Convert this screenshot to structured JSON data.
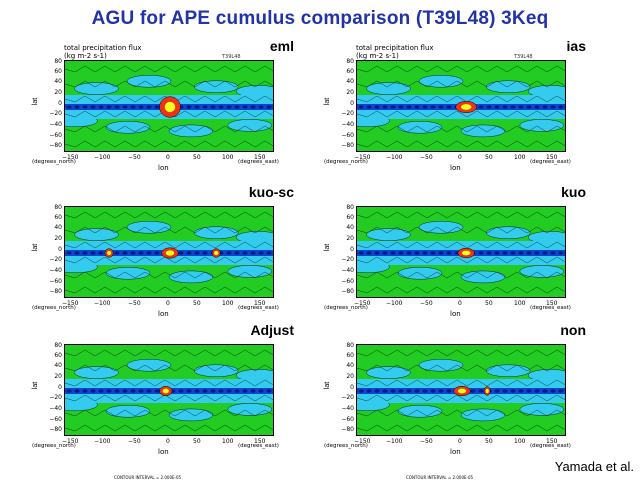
{
  "title": "AGU for APE cumulus comparison (T39L48) 3Keq",
  "credit": "Yamada et al.",
  "variable": "total precipitation flux",
  "units": "(kg m-2 s-1)",
  "resolution": "T39L48",
  "ylabel": "lat",
  "xlabel": "lon",
  "y_unit": "(degrees_north)",
  "x_unit": "(degrees_east)",
  "contour_note": "CONTOUR INTERVAL = 2.000E-05",
  "yticks": [
    "80",
    "60",
    "40",
    "20",
    "0",
    "−20",
    "−40",
    "−60",
    "−80"
  ],
  "xticks": [
    "−150",
    "−100",
    "−50",
    "0",
    "50",
    "100",
    "150"
  ],
  "colors": {
    "green": "#22cc22",
    "cyan": "#33ccee",
    "blue": "#1144cc",
    "navy": "#001a88",
    "red": "#ee3311",
    "yellow": "#ffff22"
  },
  "panels": [
    {
      "id": "eml",
      "label": "eml",
      "show_resolution": true,
      "show_contour": false
    },
    {
      "id": "ias",
      "label": "ias",
      "show_resolution": true,
      "show_contour": false
    },
    {
      "id": "kuo-sc",
      "label": "kuo-sc",
      "show_resolution": false,
      "show_contour": false
    },
    {
      "id": "kuo",
      "label": "kuo",
      "show_resolution": false,
      "show_contour": false
    },
    {
      "id": "adjust",
      "label": "Adjust",
      "show_resolution": false,
      "show_contour": true
    },
    {
      "id": "non",
      "label": "non",
      "show_resolution": false,
      "show_contour": true
    }
  ]
}
